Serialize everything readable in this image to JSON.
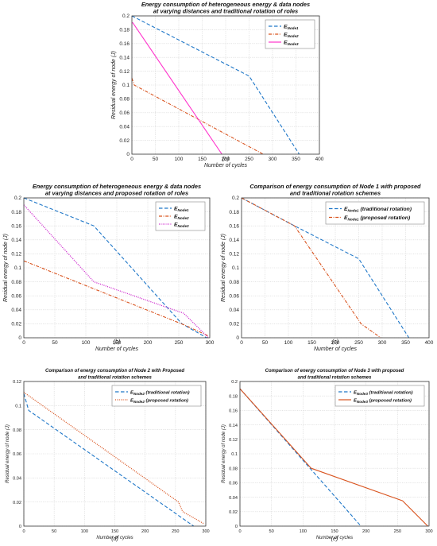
{
  "chart_data": [
    {
      "type": "line",
      "title": "Energy consumption of heterogeneous energy & data nodes",
      "subtitle": "at varying distances and traditional rotation of roles",
      "xlabel": "Number of cycles",
      "ylabel": "Residual energy of node (J)",
      "caption": "(a)",
      "xlim": [
        0,
        400
      ],
      "ylim": [
        0,
        0.2
      ],
      "xticks": [
        0,
        50,
        100,
        150,
        200,
        250,
        300,
        350,
        400
      ],
      "yticks": [
        0,
        0.02,
        0.04,
        0.06,
        0.08,
        0.1,
        0.12,
        0.14,
        0.16,
        0.18,
        0.2
      ],
      "grid": true,
      "legend_position": "top-right",
      "series": [
        {
          "name": "E",
          "subscript": "Node1",
          "suffix": "",
          "color": "#1f77c8",
          "dash": "dashed",
          "x": [
            0,
            250,
            357
          ],
          "y": [
            0.2,
            0.113,
            0
          ]
        },
        {
          "name": "E",
          "subscript": "Node2",
          "suffix": "",
          "color": "#d9531e",
          "dash": "dashdot",
          "x": [
            0,
            5,
            280
          ],
          "y": [
            0.11,
            0.1,
            0
          ]
        },
        {
          "name": "E",
          "subscript": "Node3",
          "suffix": "",
          "color": "#ff33cc",
          "dash": "solid",
          "x": [
            0,
            2,
            192
          ],
          "y": [
            0.19,
            0.19,
            0
          ]
        }
      ]
    },
    {
      "type": "line",
      "title": "Energy consumption of heterogeneous energy & data nodes",
      "subtitle": "at varying distances and proposed rotation of roles",
      "xlabel": "Number of cycles",
      "ylabel": "Residual energy of node (J)",
      "caption": "(b)",
      "xlim": [
        0,
        300
      ],
      "ylim": [
        0,
        0.2
      ],
      "xticks": [
        0,
        50,
        100,
        150,
        200,
        250,
        300
      ],
      "yticks": [
        0,
        0.02,
        0.04,
        0.06,
        0.08,
        0.1,
        0.12,
        0.14,
        0.16,
        0.18,
        0.2
      ],
      "grid": true,
      "legend_position": "top-right",
      "series": [
        {
          "name": "E",
          "subscript": "Node1",
          "suffix": "",
          "color": "#1f77c8",
          "dash": "dashed",
          "x": [
            0,
            113,
            255,
            295
          ],
          "y": [
            0.2,
            0.16,
            0.02,
            0
          ]
        },
        {
          "name": "E",
          "subscript": "Node2",
          "suffix": "",
          "color": "#d9531e",
          "dash": "dashdot",
          "x": [
            0,
            260,
            297
          ],
          "y": [
            0.11,
            0.018,
            0.003
          ]
        },
        {
          "name": "E",
          "subscript": "Node3",
          "suffix": "",
          "color": "#cc22cc",
          "dash": "dotted",
          "x": [
            0,
            113,
            258,
            298
          ],
          "y": [
            0.19,
            0.08,
            0.035,
            0
          ]
        }
      ]
    },
    {
      "type": "line",
      "title": "Comparison of energy consumption of Node 1 with proposed",
      "subtitle": "and traditional rotation schemes",
      "xlabel": "Number of cycles",
      "ylabel": "Residual energy of node (J)",
      "caption": "(c)",
      "xlim": [
        0,
        400
      ],
      "ylim": [
        0,
        0.2
      ],
      "xticks": [
        0,
        50,
        100,
        150,
        200,
        250,
        300,
        350,
        400
      ],
      "yticks": [
        0,
        0.02,
        0.04,
        0.06,
        0.08,
        0.1,
        0.12,
        0.14,
        0.16,
        0.18,
        0.2
      ],
      "grid": true,
      "legend_position": "top-right",
      "series": [
        {
          "name": "E",
          "subscript": "Node1",
          "suffix": " (traditional rotation)",
          "color": "#1f77c8",
          "dash": "dashed",
          "x": [
            0,
            113,
            250,
            357
          ],
          "y": [
            0.2,
            0.16,
            0.113,
            0
          ]
        },
        {
          "name": "E",
          "subscript": "Node1",
          "suffix": " (proposed rotation)",
          "color": "#d9531e",
          "dash": "dashdot",
          "x": [
            0,
            113,
            255,
            297
          ],
          "y": [
            0.2,
            0.16,
            0.02,
            0
          ]
        }
      ]
    },
    {
      "type": "line",
      "title": "Comparison of energy consumption of Node 2 with Proposed",
      "subtitle": "and traditional rotation schemes",
      "xlabel": "Number of cycles",
      "ylabel": "Residual energy of node (J)",
      "caption": "(d)",
      "xlim": [
        0,
        300
      ],
      "ylim": [
        0,
        0.12
      ],
      "xticks": [
        0,
        50,
        100,
        150,
        200,
        250,
        300
      ],
      "yticks": [
        0,
        0.02,
        0.04,
        0.06,
        0.08,
        0.1,
        0.12
      ],
      "grid": true,
      "legend_position": "top-right",
      "series": [
        {
          "name": "E",
          "subscript": "Node2",
          "suffix": " (traditional rotation)",
          "color": "#1f77c8",
          "dash": "dashed",
          "x": [
            0,
            8,
            280
          ],
          "y": [
            0.11,
            0.096,
            0
          ]
        },
        {
          "name": "E",
          "subscript": "Node2",
          "suffix": " (proposed rotation)",
          "color": "#d9531e",
          "dash": "dotted",
          "x": [
            0,
            255,
            262,
            297
          ],
          "y": [
            0.111,
            0.02,
            0.012,
            0.002
          ]
        }
      ]
    },
    {
      "type": "line",
      "title": "Comparison of energy consumption of Node 3 with proposed",
      "subtitle": "and traditional rotation schemes",
      "xlabel": "Number of cycles",
      "ylabel": "Residual energy of node (J)",
      "caption": "(e)",
      "xlim": [
        0,
        300
      ],
      "ylim": [
        0,
        0.2
      ],
      "xticks": [
        0,
        50,
        100,
        150,
        200,
        250,
        300
      ],
      "yticks": [
        0,
        0.02,
        0.04,
        0.06,
        0.08,
        0.1,
        0.12,
        0.14,
        0.16,
        0.18,
        0.2
      ],
      "grid": true,
      "legend_position": "top-right",
      "series": [
        {
          "name": "E",
          "subscript": "Node3",
          "suffix": " (traditional rotation)",
          "color": "#1f77c8",
          "dash": "dashed",
          "x": [
            0,
            192
          ],
          "y": [
            0.19,
            0
          ]
        },
        {
          "name": "E",
          "subscript": "Node3",
          "suffix": " (proposed rotation)",
          "color": "#d9531e",
          "dash": "solid",
          "x": [
            0,
            113,
            258,
            298
          ],
          "y": [
            0.19,
            0.08,
            0.035,
            0
          ]
        }
      ]
    }
  ]
}
